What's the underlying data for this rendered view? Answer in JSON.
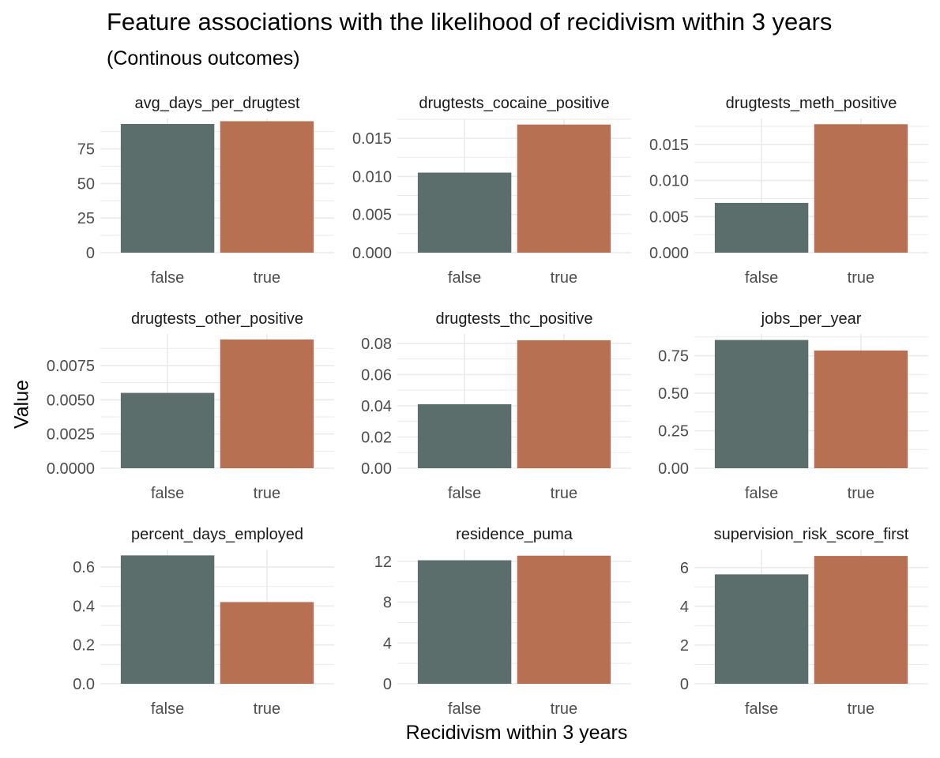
{
  "title": "Feature associations with the likelihood of recidivism within 3 years",
  "subtitle": "(Continous outcomes)",
  "ylabel": "Value",
  "xlabel": "Recidivism within 3 years",
  "colors": {
    "false": "#5b6e6b",
    "true": "#b87053",
    "grid": "#ebebeb",
    "tick_text": "#4d4d4d"
  },
  "chart_data": [
    {
      "type": "bar",
      "facet": "avg_days_per_drugtest",
      "categories": [
        "false",
        "true"
      ],
      "values": [
        93,
        95
      ],
      "ylim": [
        0,
        97
      ],
      "yticks": [
        0,
        25,
        50,
        75
      ],
      "ytick_labels": [
        "0",
        "25",
        "50",
        "75"
      ]
    },
    {
      "type": "bar",
      "facet": "drugtests_cocaine_positive",
      "categories": [
        "false",
        "true"
      ],
      "values": [
        0.0105,
        0.0168
      ],
      "ylim": [
        0,
        0.0176
      ],
      "yticks": [
        0,
        0.005,
        0.01,
        0.015
      ],
      "ytick_labels": [
        "0.000",
        "0.005",
        "0.010",
        "0.015"
      ]
    },
    {
      "type": "bar",
      "facet": "drugtests_meth_positive",
      "categories": [
        "false",
        "true"
      ],
      "values": [
        0.0069,
        0.0178
      ],
      "ylim": [
        0,
        0.0186
      ],
      "yticks": [
        0,
        0.005,
        0.01,
        0.015
      ],
      "ytick_labels": [
        "0.000",
        "0.005",
        "0.010",
        "0.015"
      ]
    },
    {
      "type": "bar",
      "facet": "drugtests_other_positive",
      "categories": [
        "false",
        "true"
      ],
      "values": [
        0.0055,
        0.0094
      ],
      "ylim": [
        0,
        0.0098
      ],
      "yticks": [
        0,
        0.0025,
        0.005,
        0.0075
      ],
      "ytick_labels": [
        "0.0000",
        "0.0025",
        "0.0050",
        "0.0075"
      ]
    },
    {
      "type": "bar",
      "facet": "drugtests_thc_positive",
      "categories": [
        "false",
        "true"
      ],
      "values": [
        0.041,
        0.082
      ],
      "ylim": [
        0,
        0.086
      ],
      "yticks": [
        0,
        0.02,
        0.04,
        0.06,
        0.08
      ],
      "ytick_labels": [
        "0.00",
        "0.02",
        "0.04",
        "0.06",
        "0.08"
      ]
    },
    {
      "type": "bar",
      "facet": "jobs_per_year",
      "categories": [
        "false",
        "true"
      ],
      "values": [
        0.855,
        0.785
      ],
      "ylim": [
        0,
        0.895
      ],
      "yticks": [
        0,
        0.25,
        0.5,
        0.75
      ],
      "ytick_labels": [
        "0.00",
        "0.25",
        "0.50",
        "0.75"
      ]
    },
    {
      "type": "bar",
      "facet": "percent_days_employed",
      "categories": [
        "false",
        "true"
      ],
      "values": [
        0.66,
        0.42
      ],
      "ylim": [
        0,
        0.69
      ],
      "yticks": [
        0,
        0.2,
        0.4,
        0.6
      ],
      "ytick_labels": [
        "0.0",
        "0.2",
        "0.4",
        "0.6"
      ]
    },
    {
      "type": "bar",
      "facet": "residence_puma",
      "categories": [
        "false",
        "true"
      ],
      "values": [
        12.1,
        12.55
      ],
      "ylim": [
        0,
        13.15
      ],
      "yticks": [
        0,
        4,
        8,
        12
      ],
      "ytick_labels": [
        "0",
        "4",
        "8",
        "12"
      ]
    },
    {
      "type": "bar",
      "facet": "supervision_risk_score_first",
      "categories": [
        "false",
        "true"
      ],
      "values": [
        5.65,
        6.6
      ],
      "ylim": [
        0,
        6.93
      ],
      "yticks": [
        0,
        2,
        4,
        6
      ],
      "ytick_labels": [
        "0",
        "2",
        "4",
        "6"
      ]
    }
  ]
}
